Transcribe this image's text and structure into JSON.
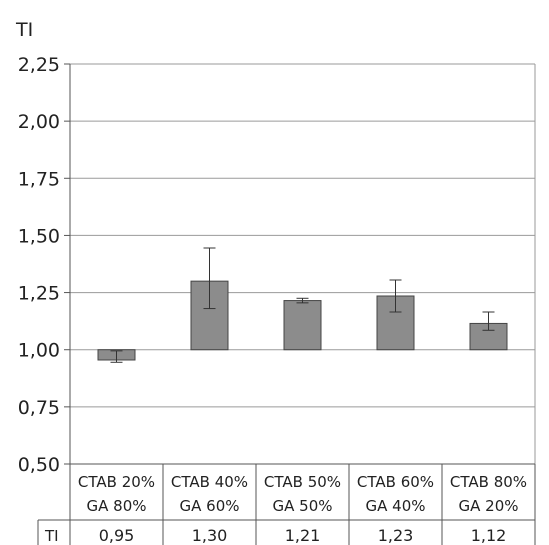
{
  "chart_data": {
    "type": "bar",
    "ylabel": "TI",
    "ylim": [
      0.5,
      2.25
    ],
    "yticks": [
      "0,50",
      "0,75",
      "1,00",
      "1,25",
      "1,50",
      "1,75",
      "2,00",
      "2,25"
    ],
    "ytick_values": [
      0.5,
      0.75,
      1.0,
      1.25,
      1.5,
      1.75,
      2.0,
      2.25
    ],
    "baseline": 1.0,
    "grid": true,
    "categories": [
      [
        "CTAB 20%",
        "GA 80%"
      ],
      [
        "CTAB 40%",
        "GA 60%"
      ],
      [
        "CTAB 50%",
        "GA 50%"
      ],
      [
        "CTAB 60%",
        "GA 40%"
      ],
      [
        "CTAB 80%",
        "GA 20%"
      ]
    ],
    "values": [
      0.955,
      1.3,
      1.215,
      1.235,
      1.115
    ],
    "error_low": [
      0.945,
      1.18,
      1.205,
      1.165,
      1.085
    ],
    "error_high": [
      0.995,
      1.445,
      1.225,
      1.305,
      1.165
    ],
    "table_row_label": "TI",
    "table_values": [
      "0,95",
      "1,30",
      "1,21",
      "1,23",
      "1,12"
    ],
    "bar_color": "#8c8c8c"
  }
}
